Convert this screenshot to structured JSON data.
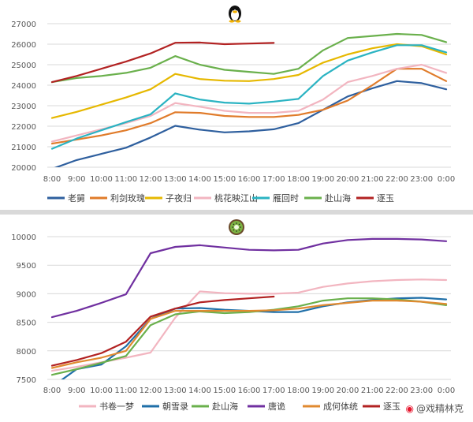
{
  "chart_data": [
    {
      "type": "line",
      "title": "🐧",
      "icon": "penguin-icon",
      "x": [
        "8:00",
        "9:00",
        "10:00",
        "11:00",
        "12:00",
        "13:00",
        "14:00",
        "15:00",
        "16:00",
        "17:00",
        "18:00",
        "19:00",
        "20:00",
        "21:00",
        "22:00",
        "23:00",
        "0:00"
      ],
      "ylim": [
        20000,
        27000
      ],
      "yticks": [
        20000,
        21000,
        22000,
        23000,
        24000,
        25000,
        26000,
        27000
      ],
      "grid": true,
      "legend_position": "bottom",
      "series": [
        {
          "name": "老舅",
          "color": "#2e5f9e",
          "values": [
            19920,
            20350,
            20650,
            20950,
            21450,
            22020,
            21830,
            21700,
            21750,
            21850,
            22150,
            22800,
            23450,
            23850,
            24200,
            24100,
            23800
          ]
        },
        {
          "name": "利剑玫瑰",
          "color": "#e07b2a",
          "values": [
            21150,
            21350,
            21550,
            21800,
            22150,
            22680,
            22650,
            22500,
            22450,
            22450,
            22550,
            22800,
            23250,
            24000,
            24800,
            24800,
            24200
          ]
        },
        {
          "name": "子夜归",
          "color": "#e6b800",
          "values": [
            22400,
            22700,
            23050,
            23400,
            23800,
            24550,
            24300,
            24220,
            24200,
            24300,
            24500,
            25100,
            25500,
            25800,
            26000,
            25900,
            25500
          ]
        },
        {
          "name": "桃花映江山",
          "color": "#f2b5c0",
          "values": [
            21250,
            21550,
            21850,
            22150,
            22500,
            23130,
            22950,
            22750,
            22650,
            22650,
            22750,
            23300,
            24150,
            24450,
            24800,
            25000,
            24600
          ]
        },
        {
          "name": "雁回时",
          "color": "#2ab3c2",
          "values": [
            20900,
            21400,
            21800,
            22200,
            22580,
            23600,
            23300,
            23150,
            23100,
            23200,
            23330,
            24450,
            25200,
            25600,
            25950,
            25950,
            25600
          ]
        },
        {
          "name": "赴山海",
          "color": "#6ab04c",
          "values": [
            24150,
            24350,
            24450,
            24600,
            24850,
            25420,
            25000,
            24750,
            24650,
            24550,
            24800,
            25700,
            26300,
            26400,
            26500,
            26450,
            26100
          ]
        },
        {
          "name": "逐玉",
          "color": "#b22222",
          "values": [
            24150,
            24450,
            24800,
            25150,
            25550,
            26070,
            26080,
            26000,
            26030,
            26060,
            null,
            null,
            null,
            null,
            null,
            null,
            null
          ]
        }
      ]
    },
    {
      "type": "line",
      "title": "🥝",
      "icon": "kiwi-icon",
      "x": [
        "8:00",
        "9:00",
        "10:00",
        "11:00",
        "12:00",
        "13:00",
        "14:00",
        "15:00",
        "16:00",
        "17:00",
        "18:00",
        "19:00",
        "20:00",
        "21:00",
        "22:00",
        "23:00",
        "0:00"
      ],
      "ylim": [
        7500,
        10000
      ],
      "yticks": [
        7500,
        8000,
        8500,
        9000,
        9500,
        10000
      ],
      "grid": true,
      "legend_position": "bottom",
      "series": [
        {
          "name": "书卷一梦",
          "color": "#f2b5c0",
          "values": [
            7650,
            7720,
            7800,
            7880,
            7970,
            8580,
            9040,
            9010,
            9000,
            9000,
            9020,
            9120,
            9180,
            9220,
            9240,
            9250,
            9240
          ]
        },
        {
          "name": "朝雪录",
          "color": "#1f6fa8",
          "values": [
            7370,
            7680,
            7760,
            8080,
            8560,
            8740,
            8750,
            8720,
            8700,
            8680,
            8680,
            8780,
            8850,
            8890,
            8920,
            8930,
            8900
          ]
        },
        {
          "name": "赴山海",
          "color": "#6ab04c",
          "values": [
            7580,
            7680,
            7790,
            7910,
            8450,
            8640,
            8690,
            8660,
            8680,
            8720,
            8780,
            8880,
            8920,
            8920,
            8900,
            8860,
            8800
          ]
        },
        {
          "name": "唐诡",
          "color": "#7030a0",
          "values": [
            8590,
            8700,
            8840,
            8990,
            9710,
            9820,
            9850,
            9810,
            9770,
            9760,
            9770,
            9880,
            9940,
            9960,
            9960,
            9950,
            9920
          ]
        },
        {
          "name": "成何体统",
          "color": "#e08a30",
          "values": [
            7700,
            7800,
            7880,
            8000,
            8560,
            8700,
            8700,
            8700,
            8700,
            8710,
            8740,
            8800,
            8840,
            8880,
            8880,
            8860,
            8820
          ]
        },
        {
          "name": "逐玉",
          "color": "#b22222",
          "values": [
            7740,
            7840,
            7960,
            8160,
            8600,
            8740,
            8850,
            8890,
            8920,
            8950,
            null,
            null,
            null,
            null,
            null,
            null,
            null
          ]
        }
      ]
    }
  ],
  "watermark": {
    "logo": "weibo-icon",
    "text": "@戏精林克"
  }
}
